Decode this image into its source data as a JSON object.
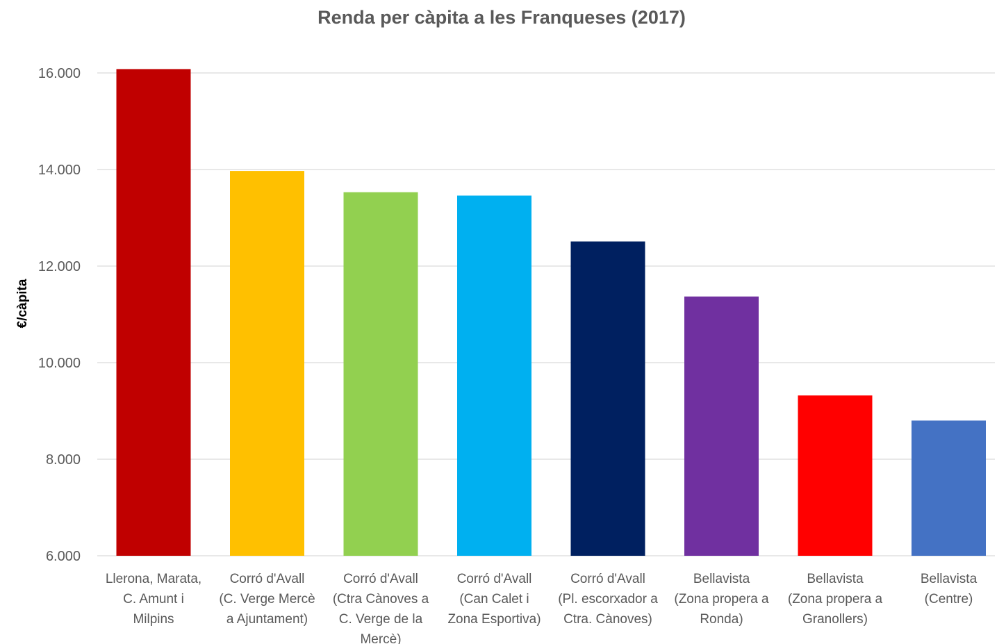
{
  "chart_data": {
    "type": "bar",
    "title": "Renda per càpita a les Franqueses (2017)",
    "xlabel": "",
    "ylabel": "€/càpita",
    "ylim": [
      6000,
      16000
    ],
    "yticks": [
      6000,
      8000,
      10000,
      12000,
      14000,
      16000
    ],
    "ytick_labels": [
      "6.000",
      "8.000",
      "10.000",
      "12.000",
      "14.000",
      "16.000"
    ],
    "grid": true,
    "categories": [
      "Llerona, Marata, C. Amunt i Milpins",
      "Corró d'Avall (C. Verge Mercè a Ajuntament)",
      "Corró d'Avall (Ctra Cànoves a C. Verge de la Mercè)",
      "Corró d'Avall (Can Calet i Zona Esportiva)",
      "Corró d'Avall (Pl. escorxador a Ctra. Cànoves)",
      "Bellavista (Zona propera a Ronda)",
      "Bellavista (Zona propera a Granollers)",
      "Bellavista (Centre)"
    ],
    "category_lines": [
      [
        "Llerona, Marata,",
        "C. Amunt i",
        "Milpins"
      ],
      [
        "Corró d'Avall",
        "(C. Verge Mercè",
        "a Ajuntament)"
      ],
      [
        "Corró d'Avall",
        "(Ctra Cànoves a",
        "C. Verge de la",
        "Mercè)"
      ],
      [
        "Corró d'Avall",
        "(Can Calet i",
        "Zona Esportiva)"
      ],
      [
        "Corró d'Avall",
        "(Pl. escorxador a",
        "Ctra. Cànoves)"
      ],
      [
        "Bellavista",
        "(Zona propera a",
        "Ronda)"
      ],
      [
        "Bellavista",
        "(Zona propera a",
        "Granollers)"
      ],
      [
        "Bellavista",
        "(Centre)"
      ]
    ],
    "values": [
      16080,
      13970,
      13530,
      13460,
      12510,
      11370,
      9320,
      8800
    ],
    "colors": [
      "#C00000",
      "#FFC000",
      "#92D050",
      "#00B0F0",
      "#002060",
      "#7030A0",
      "#FF0000",
      "#4472C4"
    ]
  }
}
